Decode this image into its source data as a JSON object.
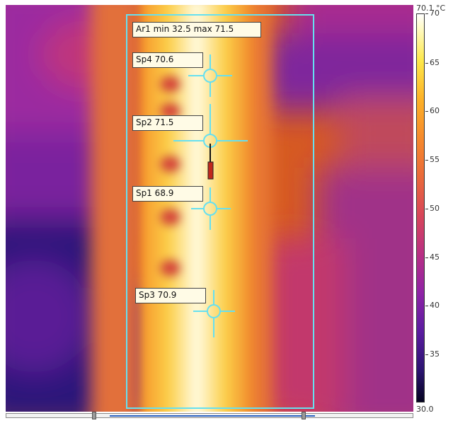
{
  "area": {
    "label": "Ar1 min 32.5 max 71.5"
  },
  "spots": [
    {
      "label": "Sp4 70.6"
    },
    {
      "label": "Sp2 71.5"
    },
    {
      "label": "Sp1 68.9"
    },
    {
      "label": "Sp3 70.9"
    }
  ],
  "colorbar": {
    "max_label": "70.1 °C",
    "min_label": "30.0",
    "ticks": [
      "70",
      "65",
      "60",
      "55",
      "50",
      "45",
      "40",
      "35"
    ]
  },
  "colors": {
    "overlay": "#66e0f0",
    "palette": "ironbow"
  }
}
